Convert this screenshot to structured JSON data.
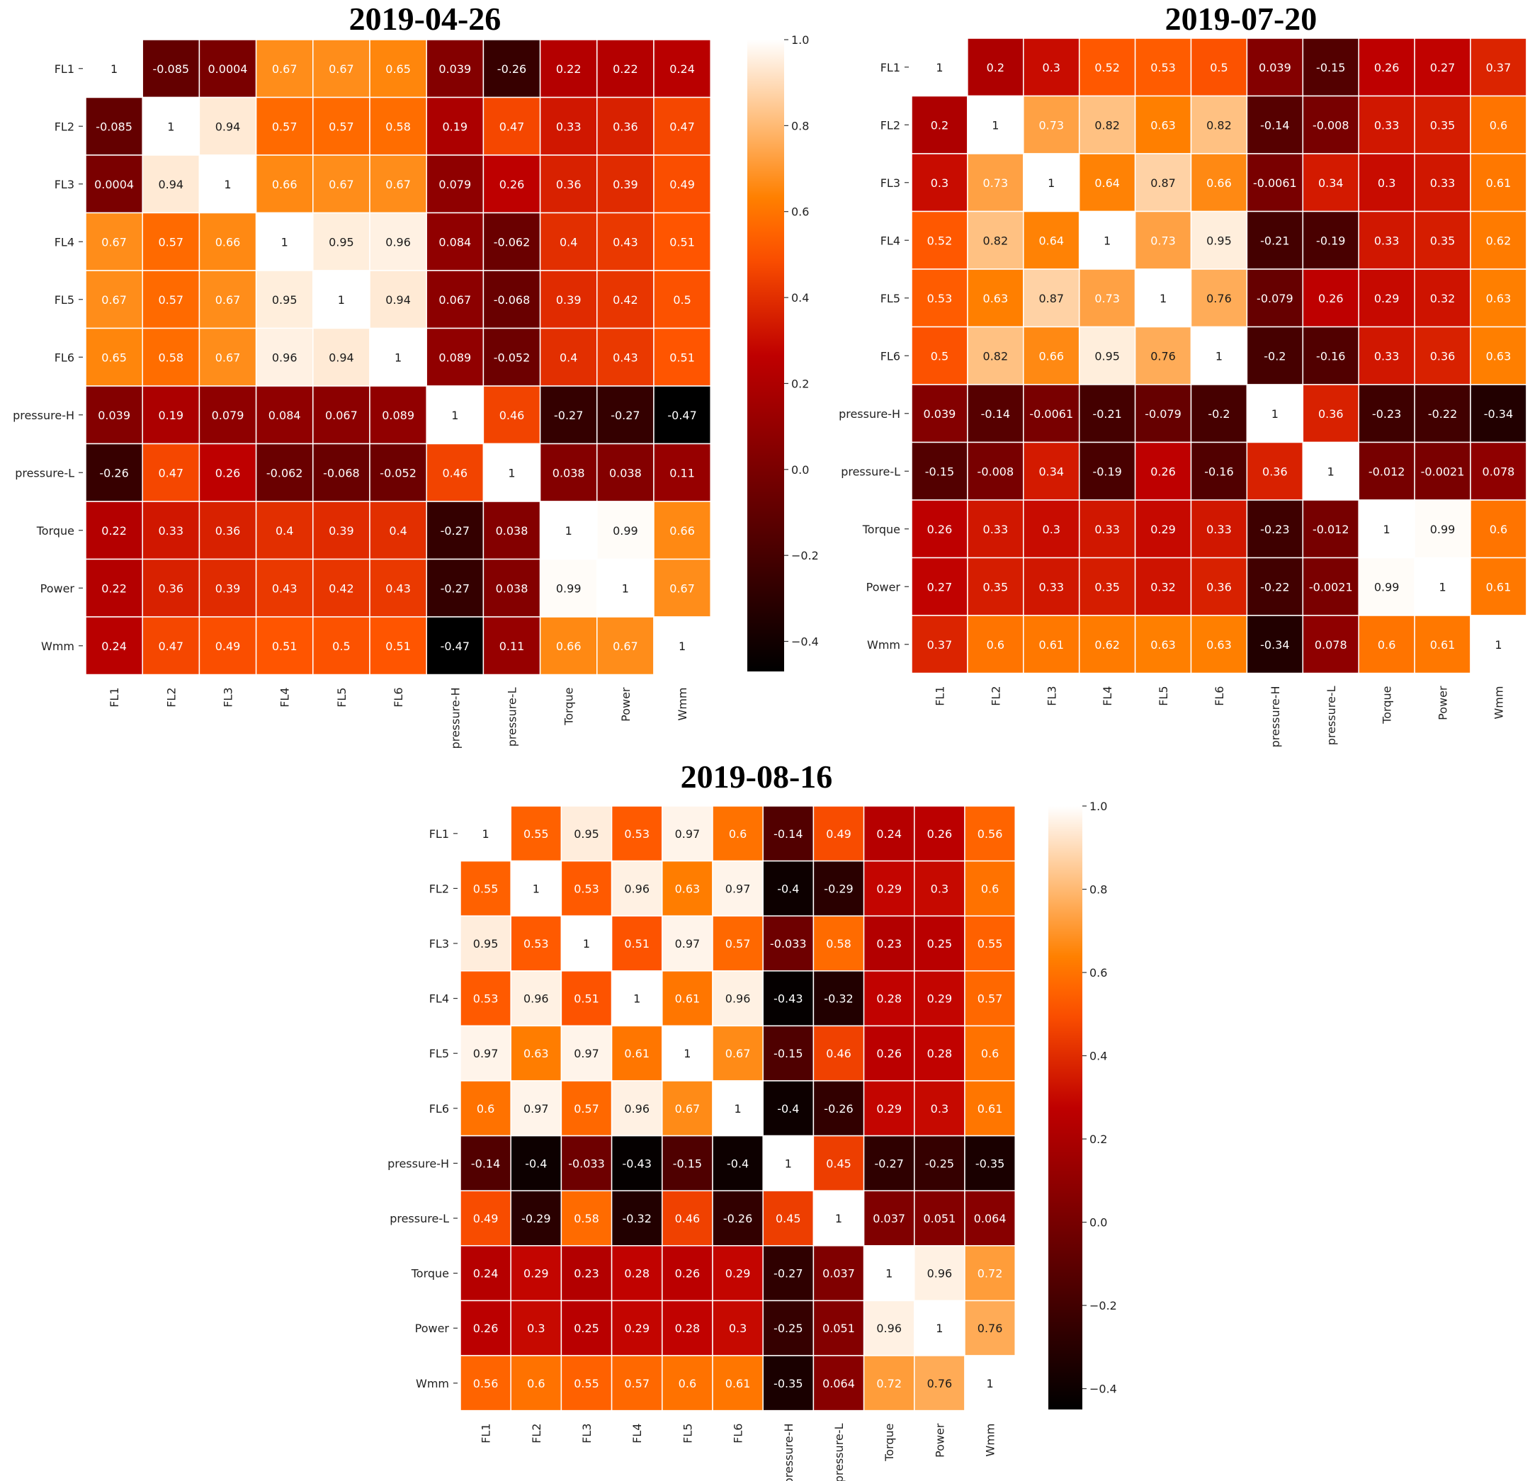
{
  "chart_data": [
    {
      "type": "heatmap",
      "title": "2019-04-26",
      "xlabel": "",
      "ylabel": "",
      "labels": [
        "FL1",
        "FL2",
        "FL3",
        "FL4",
        "FL5",
        "FL6",
        "pressure-H",
        "pressure-L",
        "Torque",
        "Power",
        "Wmm"
      ],
      "value_labels": [
        [
          "1",
          "-0.085",
          "0.0004",
          "0.67",
          "0.67",
          "0.65",
          "0.039",
          "-0.26",
          "0.22",
          "0.22",
          "0.24"
        ],
        [
          "-0.085",
          "1",
          "0.94",
          "0.57",
          "0.57",
          "0.58",
          "0.19",
          "0.47",
          "0.33",
          "0.36",
          "0.47"
        ],
        [
          "0.0004",
          "0.94",
          "1",
          "0.66",
          "0.67",
          "0.67",
          "0.079",
          "0.26",
          "0.36",
          "0.39",
          "0.49"
        ],
        [
          "0.67",
          "0.57",
          "0.66",
          "1",
          "0.95",
          "0.96",
          "0.084",
          "-0.062",
          "0.4",
          "0.43",
          "0.51"
        ],
        [
          "0.67",
          "0.57",
          "0.67",
          "0.95",
          "1",
          "0.94",
          "0.067",
          "-0.068",
          "0.39",
          "0.42",
          "0.5"
        ],
        [
          "0.65",
          "0.58",
          "0.67",
          "0.96",
          "0.94",
          "1",
          "0.089",
          "-0.052",
          "0.4",
          "0.43",
          "0.51"
        ],
        [
          "0.039",
          "0.19",
          "0.079",
          "0.084",
          "0.067",
          "0.089",
          "1",
          "0.46",
          "-0.27",
          "-0.27",
          "-0.47"
        ],
        [
          "-0.26",
          "0.47",
          "0.26",
          "-0.062",
          "-0.068",
          "-0.052",
          "0.46",
          "1",
          "0.038",
          "0.038",
          "0.11"
        ],
        [
          "0.22",
          "0.33",
          "0.36",
          "0.4",
          "0.39",
          "0.4",
          "-0.27",
          "0.038",
          "1",
          "0.99",
          "0.66"
        ],
        [
          "0.22",
          "0.36",
          "0.39",
          "0.43",
          "0.42",
          "0.43",
          "-0.27",
          "0.038",
          "0.99",
          "1",
          "0.67"
        ],
        [
          "0.24",
          "0.47",
          "0.49",
          "0.51",
          "0.5",
          "0.51",
          "-0.47",
          "0.11",
          "0.66",
          "0.67",
          "1"
        ]
      ],
      "colorbar": {
        "vmin": -0.47,
        "vmax": 1.0,
        "ticks": [
          "1.0",
          "0.8",
          "0.6",
          "0.4",
          "0.2",
          "0.0",
          "−0.2",
          "−0.4"
        ],
        "tick_values": [
          1.0,
          0.8,
          0.6,
          0.4,
          0.2,
          0.0,
          -0.2,
          -0.4
        ]
      }
    },
    {
      "type": "heatmap",
      "title": "2019-07-20",
      "xlabel": "",
      "ylabel": "",
      "labels": [
        "FL1",
        "FL2",
        "FL3",
        "FL4",
        "FL5",
        "FL6",
        "pressure-H",
        "pressure-L",
        "Torque",
        "Power",
        "Wmm"
      ],
      "value_labels": [
        [
          "1",
          "0.2",
          "0.3",
          "0.52",
          "0.53",
          "0.5",
          "0.039",
          "-0.15",
          "0.26",
          "0.27",
          "0.37"
        ],
        [
          "0.2",
          "1",
          "0.73",
          "0.82",
          "0.63",
          "0.82",
          "-0.14",
          "-0.008",
          "0.33",
          "0.35",
          "0.6"
        ],
        [
          "0.3",
          "0.73",
          "1",
          "0.64",
          "0.87",
          "0.66",
          "-0.0061",
          "0.34",
          "0.3",
          "0.33",
          "0.61"
        ],
        [
          "0.52",
          "0.82",
          "0.64",
          "1",
          "0.73",
          "0.95",
          "-0.21",
          "-0.19",
          "0.33",
          "0.35",
          "0.62"
        ],
        [
          "0.53",
          "0.63",
          "0.87",
          "0.73",
          "1",
          "0.76",
          "-0.079",
          "0.26",
          "0.29",
          "0.32",
          "0.63"
        ],
        [
          "0.5",
          "0.82",
          "0.66",
          "0.95",
          "0.76",
          "1",
          "-0.2",
          "-0.16",
          "0.33",
          "0.36",
          "0.63"
        ],
        [
          "0.039",
          "-0.14",
          "-0.0061",
          "-0.21",
          "-0.079",
          "-0.2",
          "1",
          "0.36",
          "-0.23",
          "-0.22",
          "-0.34"
        ],
        [
          "-0.15",
          "-0.008",
          "0.34",
          "-0.19",
          "0.26",
          "-0.16",
          "0.36",
          "1",
          "-0.012",
          "-0.0021",
          "0.078"
        ],
        [
          "0.26",
          "0.33",
          "0.3",
          "0.33",
          "0.29",
          "0.33",
          "-0.23",
          "-0.012",
          "1",
          "0.99",
          "0.6"
        ],
        [
          "0.27",
          "0.35",
          "0.33",
          "0.35",
          "0.32",
          "0.36",
          "-0.22",
          "-0.0021",
          "0.99",
          "1",
          "0.61"
        ],
        [
          "0.37",
          "0.6",
          "0.61",
          "0.62",
          "0.63",
          "0.63",
          "-0.34",
          "0.078",
          "0.6",
          "0.61",
          "1"
        ]
      ],
      "colorbar": {
        "vmin": -0.47,
        "vmax": 1.0
      }
    },
    {
      "type": "heatmap",
      "title": "2019-08-16",
      "xlabel": "",
      "ylabel": "",
      "labels": [
        "FL1",
        "FL2",
        "FL3",
        "FL4",
        "FL5",
        "FL6",
        "pressure-H",
        "pressure-L",
        "Torque",
        "Power",
        "Wmm"
      ],
      "value_labels": [
        [
          "1",
          "0.55",
          "0.95",
          "0.53",
          "0.97",
          "0.6",
          "-0.14",
          "0.49",
          "0.24",
          "0.26",
          "0.56"
        ],
        [
          "0.55",
          "1",
          "0.53",
          "0.96",
          "0.63",
          "0.97",
          "-0.4",
          "-0.29",
          "0.29",
          "0.3",
          "0.6"
        ],
        [
          "0.95",
          "0.53",
          "1",
          "0.51",
          "0.97",
          "0.57",
          "-0.033",
          "0.58",
          "0.23",
          "0.25",
          "0.55"
        ],
        [
          "0.53",
          "0.96",
          "0.51",
          "1",
          "0.61",
          "0.96",
          "-0.43",
          "-0.32",
          "0.28",
          "0.29",
          "0.57"
        ],
        [
          "0.97",
          "0.63",
          "0.97",
          "0.61",
          "1",
          "0.67",
          "-0.15",
          "0.46",
          "0.26",
          "0.28",
          "0.6"
        ],
        [
          "0.6",
          "0.97",
          "0.57",
          "0.96",
          "0.67",
          "1",
          "-0.4",
          "-0.26",
          "0.29",
          "0.3",
          "0.61"
        ],
        [
          "-0.14",
          "-0.4",
          "-0.033",
          "-0.43",
          "-0.15",
          "-0.4",
          "1",
          "0.45",
          "-0.27",
          "-0.25",
          "-0.35"
        ],
        [
          "0.49",
          "-0.29",
          "0.58",
          "-0.32",
          "0.46",
          "-0.26",
          "0.45",
          "1",
          "0.037",
          "0.051",
          "0.064"
        ],
        [
          "0.24",
          "0.29",
          "0.23",
          "0.28",
          "0.26",
          "0.29",
          "-0.27",
          "0.037",
          "1",
          "0.96",
          "0.72"
        ],
        [
          "0.26",
          "0.3",
          "0.25",
          "0.29",
          "0.28",
          "0.3",
          "-0.25",
          "0.051",
          "0.96",
          "1",
          "0.76"
        ],
        [
          "0.56",
          "0.6",
          "0.55",
          "0.57",
          "0.6",
          "0.61",
          "-0.35",
          "0.064",
          "0.72",
          "0.76",
          "1"
        ]
      ],
      "colorbar": {
        "vmin": -0.45,
        "vmax": 1.0,
        "ticks": [
          "1.0",
          "0.8",
          "0.6",
          "0.4",
          "0.2",
          "0.0",
          "−0.2",
          "−0.4"
        ],
        "tick_values": [
          1.0,
          0.8,
          0.6,
          0.4,
          0.2,
          0.0,
          -0.2,
          -0.4
        ]
      }
    }
  ],
  "colormap": "gist_heat",
  "colors": {
    "cell_border": "#ffffff",
    "text_light": "#ffffff",
    "text_dark": "#1a1a1a"
  }
}
